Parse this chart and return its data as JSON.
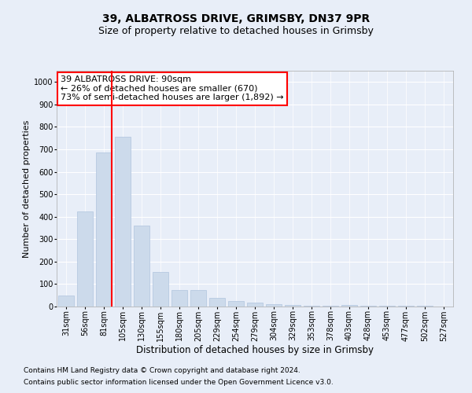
{
  "title1": "39, ALBATROSS DRIVE, GRIMSBY, DN37 9PR",
  "title2": "Size of property relative to detached houses in Grimsby",
  "xlabel": "Distribution of detached houses by size in Grimsby",
  "ylabel": "Number of detached properties",
  "categories": [
    "31sqm",
    "56sqm",
    "81sqm",
    "105sqm",
    "130sqm",
    "155sqm",
    "180sqm",
    "205sqm",
    "229sqm",
    "254sqm",
    "279sqm",
    "304sqm",
    "329sqm",
    "353sqm",
    "378sqm",
    "403sqm",
    "428sqm",
    "453sqm",
    "477sqm",
    "502sqm",
    "527sqm"
  ],
  "values": [
    50,
    425,
    685,
    757,
    360,
    155,
    75,
    75,
    37,
    25,
    18,
    12,
    8,
    3,
    3,
    8,
    5,
    3,
    2,
    2,
    1
  ],
  "bar_color": "#ccdaeb",
  "bar_edge_color": "#b0c4de",
  "redline_index": 2,
  "annotation_line1": "39 ALBATROSS DRIVE: 90sqm",
  "annotation_line2": "← 26% of detached houses are smaller (670)",
  "annotation_line3": "73% of semi-detached houses are larger (1,892) →",
  "annotation_box_color": "white",
  "annotation_box_edge": "red",
  "ylim": [
    0,
    1050
  ],
  "yticks": [
    0,
    100,
    200,
    300,
    400,
    500,
    600,
    700,
    800,
    900,
    1000
  ],
  "bg_color": "#e8eef8",
  "plot_bg_color": "#e8eef8",
  "grid_color": "white",
  "footer1": "Contains HM Land Registry data © Crown copyright and database right 2024.",
  "footer2": "Contains public sector information licensed under the Open Government Licence v3.0.",
  "title1_fontsize": 10,
  "title2_fontsize": 9,
  "xlabel_fontsize": 8.5,
  "ylabel_fontsize": 8,
  "tick_fontsize": 7,
  "annotation_fontsize": 8,
  "footer_fontsize": 6.5
}
